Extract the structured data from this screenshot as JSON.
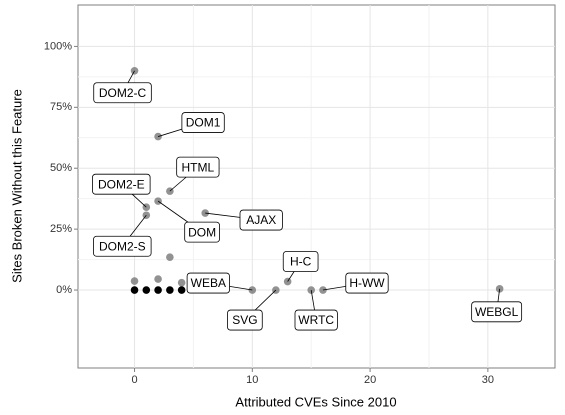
{
  "chart_data": {
    "type": "scatter",
    "x_label": "Attributed CVEs Since 2010",
    "y_label": "Sites Broken Without this Feature",
    "x": [
      0,
      2,
      3,
      1,
      2,
      6,
      1,
      3,
      0,
      2,
      4,
      10,
      12,
      13,
      15,
      16,
      31,
      0,
      1,
      2,
      3,
      4
    ],
    "values": [
      90,
      63,
      40.6,
      34,
      36.5,
      31.6,
      30.7,
      13.5,
      3.7,
      4.5,
      3,
      0,
      0,
      3.5,
      0,
      0,
      0.5,
      0,
      0,
      0,
      0,
      0
    ],
    "point_labels": [
      "DOM2-C",
      "DOM1",
      "HTML",
      "DOM2-E",
      "DOM",
      "AJAX",
      "DOM2-S",
      null,
      null,
      null,
      null,
      "WEBA",
      "SVG",
      "H-C",
      "WRTC",
      "H-WW",
      "WEBGL",
      null,
      null,
      null,
      null,
      null
    ],
    "colors": [
      "#7f7f7f",
      "#7f7f7f",
      "#7f7f7f",
      "#7f7f7f",
      "#7f7f7f",
      "#7f7f7f",
      "#7f7f7f",
      "#7f7f7f",
      "#7f7f7f",
      "#7f7f7f",
      "#7f7f7f",
      "#7f7f7f",
      "#7f7f7f",
      "#7f7f7f",
      "#7f7f7f",
      "#7f7f7f",
      "#7f7f7f",
      "#000000",
      "#000000",
      "#000000",
      "#000000",
      "#000000"
    ],
    "xlim": [
      -4.8,
      35.7
    ],
    "xticks": [
      0,
      10,
      20,
      30
    ],
    "ylim": [
      -32,
      117
    ],
    "yticks": [
      {
        "value": 0,
        "label": "0%"
      },
      {
        "value": 25,
        "label": "25%"
      },
      {
        "value": 50,
        "label": "50%"
      },
      {
        "value": 75,
        "label": "75%"
      },
      {
        "value": 100,
        "label": "100%"
      }
    ],
    "grid": true
  }
}
